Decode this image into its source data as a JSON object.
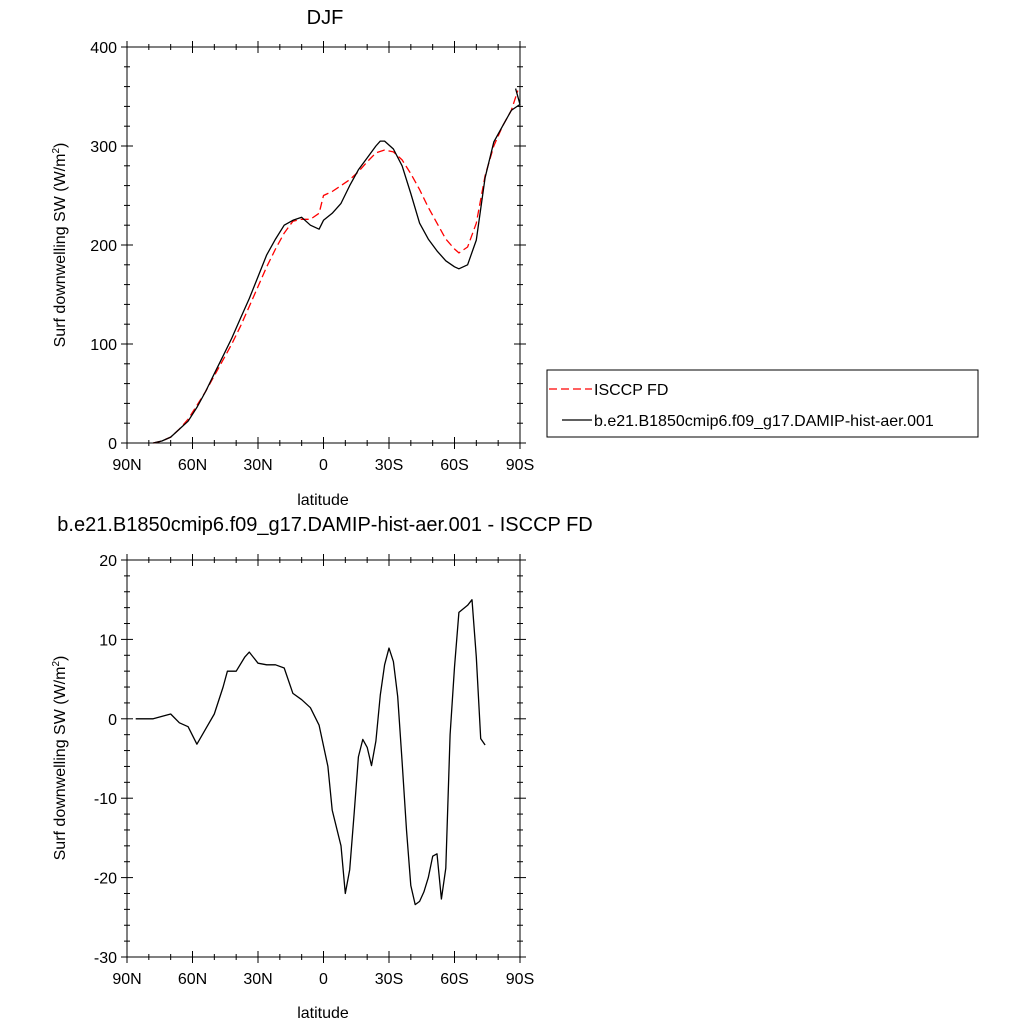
{
  "chart_data": [
    {
      "type": "line",
      "title": "DJF",
      "xlabel": "latitude",
      "ylabel": "Surf downwelling SW (W/m",
      "ylabel_sup": "2",
      "ylabel_close": ")",
      "xlim": [
        90,
        -90
      ],
      "ylim": [
        0,
        400
      ],
      "xticks": [
        {
          "value": 90,
          "label": "90N"
        },
        {
          "value": 60,
          "label": "60N"
        },
        {
          "value": 30,
          "label": "30N"
        },
        {
          "value": 0,
          "label": "0"
        },
        {
          "value": -30,
          "label": "30S"
        },
        {
          "value": -60,
          "label": "60S"
        },
        {
          "value": -90,
          "label": "90S"
        }
      ],
      "yticks": [
        0,
        100,
        200,
        300,
        400
      ],
      "legend_position": "right",
      "series": [
        {
          "name": "ISCCP FD",
          "color": "#ff0000",
          "dash": "dashed",
          "points": [
            [
              78,
              0
            ],
            [
              74,
              2
            ],
            [
              70,
              6
            ],
            [
              66,
              14
            ],
            [
              62,
              24
            ],
            [
              58,
              38
            ],
            [
              54,
              52
            ],
            [
              50,
              68
            ],
            [
              46,
              84
            ],
            [
              42,
              100
            ],
            [
              38,
              118
            ],
            [
              34,
              138
            ],
            [
              30,
              158
            ],
            [
              26,
              178
            ],
            [
              22,
              196
            ],
            [
              18,
              212
            ],
            [
              14,
              224
            ],
            [
              10,
              226
            ],
            [
              6,
              226
            ],
            [
              2,
              232
            ],
            [
              0,
              250
            ],
            [
              -4,
              254
            ],
            [
              -8,
              260
            ],
            [
              -12,
              266
            ],
            [
              -16,
              274
            ],
            [
              -20,
              284
            ],
            [
              -24,
              293
            ],
            [
              -28,
              296
            ],
            [
              -32,
              294
            ],
            [
              -36,
              286
            ],
            [
              -40,
              272
            ],
            [
              -44,
              256
            ],
            [
              -48,
              238
            ],
            [
              -52,
              222
            ],
            [
              -56,
              206
            ],
            [
              -60,
              196
            ],
            [
              -62,
              192
            ],
            [
              -66,
              198
            ],
            [
              -70,
              222
            ],
            [
              -74,
              270
            ],
            [
              -78,
              300
            ],
            [
              -82,
              320
            ],
            [
              -86,
              336
            ],
            [
              -89,
              356
            ]
          ]
        },
        {
          "name": "b.e21.B1850cmip6.f09_g17.DAMIP-hist-aer.001",
          "color": "#000000",
          "dash": "solid",
          "points": [
            [
              78,
              0
            ],
            [
              74,
              2
            ],
            [
              70,
              6
            ],
            [
              66,
              14
            ],
            [
              62,
              22
            ],
            [
              58,
              36
            ],
            [
              54,
              52
            ],
            [
              50,
              70
            ],
            [
              46,
              88
            ],
            [
              42,
              106
            ],
            [
              38,
              126
            ],
            [
              34,
              146
            ],
            [
              30,
              168
            ],
            [
              26,
              190
            ],
            [
              22,
              206
            ],
            [
              18,
              220
            ],
            [
              14,
              225
            ],
            [
              10,
              228
            ],
            [
              6,
              220
            ],
            [
              2,
              216
            ],
            [
              0,
              225
            ],
            [
              -4,
              232
            ],
            [
              -8,
              242
            ],
            [
              -12,
              260
            ],
            [
              -16,
              276
            ],
            [
              -20,
              288
            ],
            [
              -24,
              300
            ],
            [
              -26,
              305
            ],
            [
              -28,
              305
            ],
            [
              -32,
              297
            ],
            [
              -36,
              280
            ],
            [
              -40,
              252
            ],
            [
              -44,
              222
            ],
            [
              -48,
              206
            ],
            [
              -52,
              194
            ],
            [
              -56,
              184
            ],
            [
              -60,
              178
            ],
            [
              -62,
              176
            ],
            [
              -66,
              180
            ],
            [
              -70,
              205
            ],
            [
              -74,
              268
            ],
            [
              -78,
              304
            ],
            [
              -82,
              320
            ],
            [
              -86,
              336
            ],
            [
              -90,
              342
            ],
            [
              -88,
              358
            ]
          ]
        }
      ]
    },
    {
      "type": "line",
      "title": "b.e21.B1850cmip6.f09_g17.DAMIP-hist-aer.001 - ISCCP FD",
      "xlabel": "latitude",
      "ylabel": "Surf downwelling SW (W/m",
      "ylabel_sup": "2",
      "ylabel_close": ")",
      "xlim": [
        90,
        -90
      ],
      "ylim": [
        -30,
        20
      ],
      "xticks": [
        {
          "value": 90,
          "label": "90N"
        },
        {
          "value": 60,
          "label": "60N"
        },
        {
          "value": 30,
          "label": "30N"
        },
        {
          "value": 0,
          "label": "0"
        },
        {
          "value": -30,
          "label": "30S"
        },
        {
          "value": -60,
          "label": "60S"
        },
        {
          "value": -90,
          "label": "90S"
        }
      ],
      "yticks": [
        -30,
        -20,
        -10,
        0,
        10,
        20
      ],
      "series": [
        {
          "color": "#000000",
          "dash": "solid",
          "points": [
            [
              86,
              0
            ],
            [
              82,
              0
            ],
            [
              78,
              0
            ],
            [
              74,
              0.3
            ],
            [
              70,
              0.6
            ],
            [
              66,
              -0.5
            ],
            [
              62,
              -1
            ],
            [
              58,
              -3.2
            ],
            [
              54,
              -1.3
            ],
            [
              50,
              0.6
            ],
            [
              46,
              4
            ],
            [
              44,
              6
            ],
            [
              40,
              6
            ],
            [
              36,
              7.8
            ],
            [
              34,
              8.4
            ],
            [
              30,
              7
            ],
            [
              26,
              6.8
            ],
            [
              22,
              6.8
            ],
            [
              18,
              6.4
            ],
            [
              14,
              3.2
            ],
            [
              10,
              2.4
            ],
            [
              6,
              1.4
            ],
            [
              2,
              -0.8
            ],
            [
              -2,
              -6
            ],
            [
              -4,
              -11.5
            ],
            [
              -8,
              -16
            ],
            [
              -10,
              -22
            ],
            [
              -12,
              -19
            ],
            [
              -14,
              -12
            ],
            [
              -16,
              -4.8
            ],
            [
              -18,
              -2.6
            ],
            [
              -20,
              -3.6
            ],
            [
              -22,
              -5.9
            ],
            [
              -24,
              -2.8
            ],
            [
              -26,
              3
            ],
            [
              -28,
              6.8
            ],
            [
              -30,
              8.9
            ],
            [
              -32,
              7.2
            ],
            [
              -34,
              2.8
            ],
            [
              -36,
              -5.4
            ],
            [
              -38,
              -14
            ],
            [
              -40,
              -21
            ],
            [
              -42,
              -23.4
            ],
            [
              -44,
              -23
            ],
            [
              -46,
              -21.8
            ],
            [
              -48,
              -20
            ],
            [
              -50,
              -17.3
            ],
            [
              -52,
              -17
            ],
            [
              -54,
              -22.7
            ],
            [
              -56,
              -18.8
            ],
            [
              -58,
              -2
            ],
            [
              -60,
              6.5
            ],
            [
              -62,
              13.4
            ],
            [
              -66,
              14.3
            ],
            [
              -68,
              15
            ],
            [
              -70,
              7.8
            ],
            [
              -72,
              -2.5
            ],
            [
              -74,
              -3.3
            ]
          ]
        }
      ]
    }
  ]
}
